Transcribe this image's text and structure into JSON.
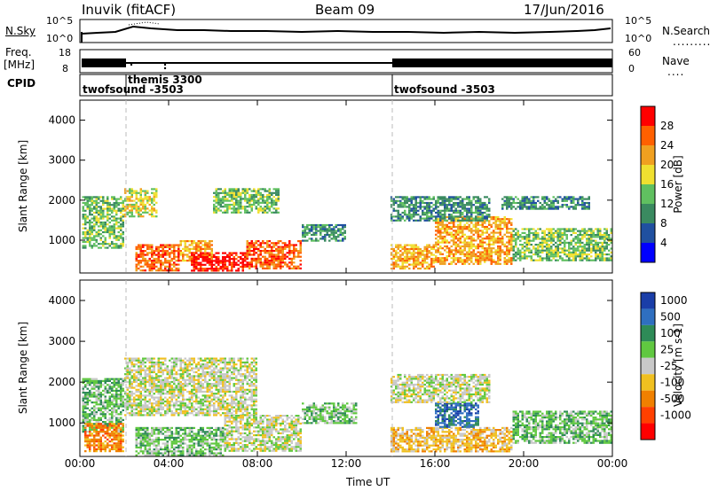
{
  "header": {
    "station": "Inuvik (fitACF)",
    "beam": "Beam 09",
    "date": "17/Jun/2016"
  },
  "top_panel": {
    "left_label": "N.Sky",
    "left_ticks": [
      "10^5",
      "10^0"
    ],
    "right_label": "N.Search",
    "right_ticks": [
      "10^5",
      "10^0"
    ]
  },
  "freq_panel": {
    "left_label_1": "Freq.",
    "left_label_2": "[MHz]",
    "left_ticks": [
      "18",
      "8"
    ],
    "right_label": "Nave",
    "right_ticks": [
      "60",
      "0"
    ]
  },
  "cpid_panel": {
    "label": "CPID",
    "entries": [
      {
        "text": "twofsound -3503",
        "start_h": 0
      },
      {
        "text": "themis 3300",
        "start_h": 2
      },
      {
        "text": "twofsound -3503",
        "start_h": 14
      }
    ]
  },
  "colors": {
    "power_scale": [
      "#0000ff",
      "#2050a0",
      "#3a8a60",
      "#60c060",
      "#f0e030",
      "#f0a020",
      "#ff6000",
      "#ff0000"
    ],
    "velocity_scale": [
      "#1a3ea8",
      "#2f6fc0",
      "#2e8b57",
      "#60c840",
      "#c8c8c8",
      "#f0c020",
      "#f08000",
      "#ff4000",
      "#ff0000"
    ]
  },
  "chart_data": [
    {
      "type": "heatmap",
      "title": "",
      "xlabel": "",
      "ylabel": "Slant Range [km]",
      "x_range_h": [
        0,
        24
      ],
      "ylim": [
        180,
        4500
      ],
      "y_ticks": [
        "1000",
        "2000",
        "3000",
        "4000"
      ],
      "colorbar": {
        "label": "Power [dB]",
        "ticks": [
          "28",
          "24",
          "20",
          "16",
          "12",
          "8",
          "4"
        ],
        "range": [
          0,
          32
        ]
      },
      "regions": [
        {
          "t0": 0.1,
          "t1": 2.0,
          "r0": 800,
          "r1": 2100,
          "level": 3
        },
        {
          "t0": 2.0,
          "t1": 3.5,
          "r0": 1600,
          "r1": 2300,
          "level": 4
        },
        {
          "t0": 2.5,
          "t1": 4.5,
          "r0": 250,
          "r1": 900,
          "level": 6
        },
        {
          "t0": 4.5,
          "t1": 6.0,
          "r0": 500,
          "r1": 1000,
          "level": 5
        },
        {
          "t0": 5.0,
          "t1": 7.5,
          "r0": 250,
          "r1": 700,
          "level": 7
        },
        {
          "t0": 6.0,
          "t1": 9.0,
          "r0": 1700,
          "r1": 2300,
          "level": 3
        },
        {
          "t0": 7.5,
          "t1": 10.0,
          "r0": 300,
          "r1": 1000,
          "level": 6
        },
        {
          "t0": 10.0,
          "t1": 12.0,
          "r0": 1000,
          "r1": 1400,
          "level": 2
        },
        {
          "t0": 14.0,
          "t1": 16.0,
          "r0": 300,
          "r1": 900,
          "level": 5
        },
        {
          "t0": 16.0,
          "t1": 19.5,
          "r0": 400,
          "r1": 1600,
          "level": 5
        },
        {
          "t0": 19.5,
          "t1": 24.0,
          "r0": 500,
          "r1": 1300,
          "level": 3
        },
        {
          "t0": 14.0,
          "t1": 18.5,
          "r0": 1500,
          "r1": 2100,
          "level": 2
        },
        {
          "t0": 19.0,
          "t1": 23.0,
          "r0": 1800,
          "r1": 2100,
          "level": 2
        }
      ]
    },
    {
      "type": "heatmap",
      "title": "",
      "xlabel": "Time UT",
      "ylabel": "Slant Range [km]",
      "x_range_h": [
        0,
        24
      ],
      "ylim": [
        180,
        4500
      ],
      "y_ticks": [
        "1000",
        "2000",
        "3000",
        "4000"
      ],
      "x_ticks": [
        "00:00",
        "04:00",
        "08:00",
        "12:00",
        "16:00",
        "20:00",
        "00:00"
      ],
      "colorbar": {
        "label": "Velocity [m s-1]",
        "ticks": [
          "1000",
          "500",
          "100",
          "25",
          "-25",
          "-100",
          "-500",
          "-1000"
        ],
        "range": [
          -1200,
          1200
        ]
      },
      "regions": [
        {
          "t0": 0.1,
          "t1": 2.0,
          "r0": 800,
          "r1": 2100,
          "level": 3
        },
        {
          "t0": 2.0,
          "t1": 8.0,
          "r0": 1200,
          "r1": 2600,
          "level": 4
        },
        {
          "t0": 2.5,
          "t1": 6.5,
          "r0": 200,
          "r1": 900,
          "level": 3
        },
        {
          "t0": 6.5,
          "t1": 10.0,
          "r0": 300,
          "r1": 1200,
          "level": 4
        },
        {
          "t0": 0.2,
          "t1": 2.0,
          "r0": 300,
          "r1": 1000,
          "level": 6
        },
        {
          "t0": 10.0,
          "t1": 12.5,
          "r0": 1000,
          "r1": 1500,
          "level": 3
        },
        {
          "t0": 14.0,
          "t1": 16.0,
          "r0": 300,
          "r1": 900,
          "level": 5
        },
        {
          "t0": 16.0,
          "t1": 19.5,
          "r0": 300,
          "r1": 900,
          "level": 5
        },
        {
          "t0": 16.0,
          "t1": 18.0,
          "r0": 900,
          "r1": 1500,
          "level": 1
        },
        {
          "t0": 14.0,
          "t1": 18.5,
          "r0": 1500,
          "r1": 2200,
          "level": 4
        },
        {
          "t0": 19.5,
          "t1": 24.0,
          "r0": 500,
          "r1": 1300,
          "level": 3
        }
      ]
    }
  ]
}
